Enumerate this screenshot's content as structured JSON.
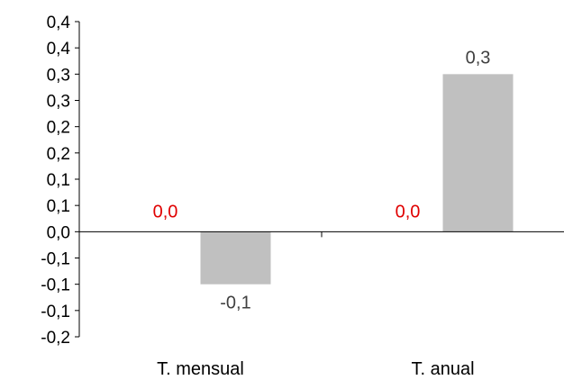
{
  "chart_data": {
    "type": "bar",
    "categories": [
      "T. mensual",
      "T. anual"
    ],
    "series": [
      {
        "values": [
          0.0,
          0.0
        ],
        "value_labels": [
          "0,0",
          "0,0"
        ],
        "color": "#e00000",
        "label_color": "#e00000"
      },
      {
        "values": [
          -0.1,
          0.3
        ],
        "value_labels": [
          "-0,1",
          "0,3"
        ],
        "color": "#c0c0c0",
        "label_color": "#404040"
      }
    ],
    "ylim": [
      -0.2,
      0.4
    ],
    "y_ticks": [
      -0.2,
      -0.15,
      -0.1,
      -0.05,
      0,
      0.05,
      0.1,
      0.15,
      0.2,
      0.25,
      0.3,
      0.35,
      0.4
    ],
    "y_tick_labels": [
      "-0,2",
      "-0,1",
      "-0,1",
      "-0,1",
      "0,0",
      "0,1",
      "0,1",
      "0,2",
      "0,2",
      "0,3",
      "0,3",
      "0,4",
      "0,4"
    ],
    "title": "",
    "xlabel": "",
    "ylabel": "",
    "grid": false,
    "legend": "none",
    "axis_color": "#000000"
  }
}
